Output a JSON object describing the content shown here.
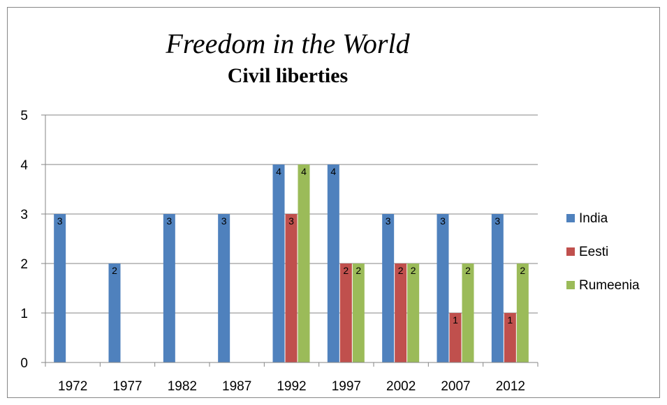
{
  "chart_data": {
    "type": "bar",
    "title": "Freedom in the World",
    "subtitle": "Civil liberties",
    "xlabel": "",
    "ylabel": "",
    "ylim": [
      0,
      5
    ],
    "yticks": [
      "0",
      "1",
      "2",
      "3",
      "4",
      "5"
    ],
    "categories": [
      "1972",
      "1977",
      "1982",
      "1987",
      "1992",
      "1997",
      "2002",
      "2007",
      "2012"
    ],
    "series": [
      {
        "name": "India",
        "color": "#4f81bd",
        "values": [
          3,
          2,
          3,
          3,
          4,
          4,
          3,
          3,
          3
        ]
      },
      {
        "name": "Eesti",
        "color": "#c0504d",
        "values": [
          null,
          null,
          null,
          null,
          3,
          2,
          2,
          1,
          1
        ]
      },
      {
        "name": "Rumeenia",
        "color": "#9bbb59",
        "values": [
          null,
          null,
          null,
          null,
          4,
          2,
          2,
          2,
          2
        ]
      }
    ],
    "grid": true,
    "legend_position": "right"
  }
}
